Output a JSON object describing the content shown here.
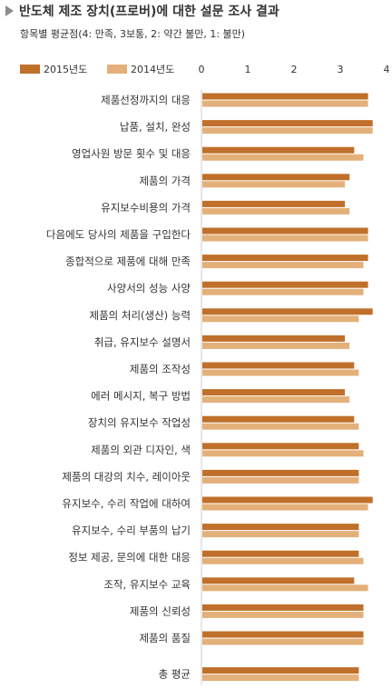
{
  "title": "반도체 제조 장치(프로버)에 대한 설문 조사 결과",
  "subtitle": "항목별 평균점(4: 만족, 3보통, 2: 약간 불만, 1: 불만)",
  "chart_data": {
    "type": "bar",
    "orientation": "horizontal",
    "xlim": [
      0,
      4
    ],
    "xticks": [
      "0",
      "1",
      "2",
      "3",
      "4"
    ],
    "grid": false,
    "legend_position": "top",
    "categories": [
      "제품선정까지의 대응",
      "납품, 설치, 완성",
      "영업사원 방문 횟수 및 대응",
      "제품의 가격",
      "유지보수비용의 가격",
      "다음에도 당사의 제품을 구입한다",
      "종합적으로 제품에 대해 만족",
      "사양서의 성능 사양",
      "제품의 처리(생산) 능력",
      "취급, 유지보수 설명서",
      "제품의 조작성",
      "에러 메시지, 복구 방법",
      "장치의 유지보수 작업성",
      "제품의 외관 디자인, 색",
      "제품의 대강의 치수, 레이아웃",
      "유지보수, 수리 작업에 대하여",
      "유지보수, 수리 부품의 납기",
      "정보 제공, 문의에 대한 대응",
      "조작, 유지보수 교육",
      "제품의 신뢰성",
      "제품의 품질",
      "총 평균"
    ],
    "series": [
      {
        "name": "2015년도",
        "color": "#c0702a",
        "values": [
          3.6,
          3.7,
          3.3,
          3.2,
          3.1,
          3.6,
          3.6,
          3.6,
          3.7,
          3.1,
          3.3,
          3.1,
          3.3,
          3.4,
          3.4,
          3.7,
          3.4,
          3.4,
          3.3,
          3.5,
          3.5,
          3.4
        ]
      },
      {
        "name": "2014년도",
        "color": "#e4b07a",
        "values": [
          3.6,
          3.7,
          3.5,
          3.1,
          3.2,
          3.6,
          3.5,
          3.5,
          3.4,
          3.2,
          3.4,
          3.2,
          3.4,
          3.5,
          3.4,
          3.6,
          3.4,
          3.5,
          3.6,
          3.5,
          3.5,
          3.4
        ]
      }
    ]
  }
}
